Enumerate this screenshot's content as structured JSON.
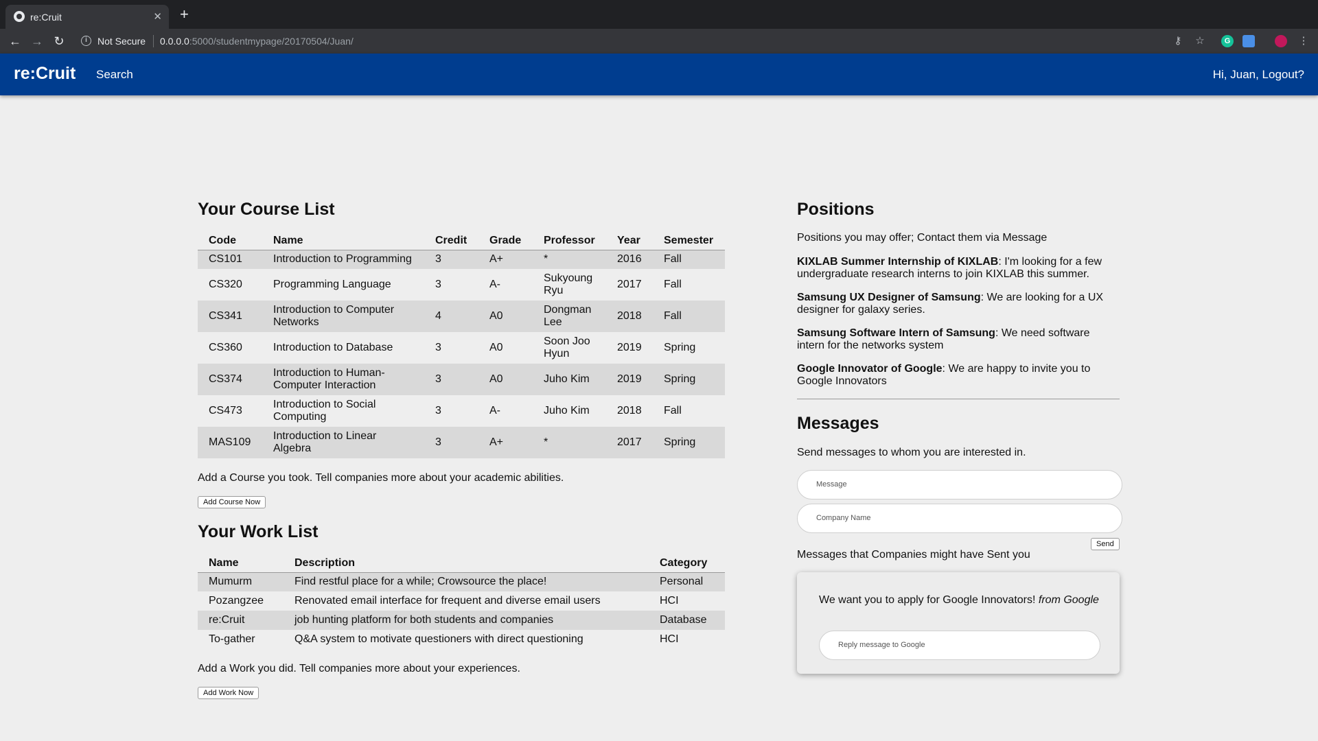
{
  "browser": {
    "tab_title": "re:Cruit",
    "new_tab": "+",
    "security_label": "Not Secure",
    "url_host": "0.0.0.0",
    "url_path": ":5000/studentmypage/20170504/Juan/"
  },
  "nav": {
    "brand": "re:Cruit",
    "search": "Search",
    "logout": "Hi, Juan, Logout?"
  },
  "courses": {
    "title": "Your Course List",
    "headers": [
      "Code",
      "Name",
      "Credit",
      "Grade",
      "Professor",
      "Year",
      "Semester"
    ],
    "rows": [
      [
        "CS101",
        "Introduction to Programming",
        "3",
        "A+",
        "*",
        "2016",
        "Fall"
      ],
      [
        "CS320",
        "Programming Language",
        "3",
        "A-",
        "Sukyoung Ryu",
        "2017",
        "Fall"
      ],
      [
        "CS341",
        "Introduction to Computer Networks",
        "4",
        "A0",
        "Dongman Lee",
        "2018",
        "Fall"
      ],
      [
        "CS360",
        "Introduction to Database",
        "3",
        "A0",
        "Soon Joo Hyun",
        "2019",
        "Spring"
      ],
      [
        "CS374",
        "Introduction to Human-Computer Interaction",
        "3",
        "A0",
        "Juho Kim",
        "2019",
        "Spring"
      ],
      [
        "CS473",
        "Introduction to Social Computing",
        "3",
        "A-",
        "Juho Kim",
        "2018",
        "Fall"
      ],
      [
        "MAS109",
        "Introduction to Linear Algebra",
        "3",
        "A+",
        "*",
        "2017",
        "Spring"
      ]
    ],
    "add_text": "Add a Course you took. Tell companies more about your academic abilities.",
    "add_button": "Add Course Now"
  },
  "works": {
    "title": "Your Work List",
    "headers": [
      "Name",
      "Description",
      "Category"
    ],
    "rows": [
      [
        "Mumurm",
        "Find restful place for a while; Crowsource the place!",
        "Personal"
      ],
      [
        "Pozangzee",
        "Renovated email interface for frequent and diverse email users",
        "HCI"
      ],
      [
        "re:Cruit",
        "job hunting platform for both students and companies",
        "Database"
      ],
      [
        "To-gather",
        "Q&A system to motivate questioners with direct questioning",
        "HCI"
      ]
    ],
    "add_text": "Add a Work you did. Tell companies more about your experiences.",
    "add_button": "Add Work Now"
  },
  "positions": {
    "title": "Positions",
    "intro": "Positions you may offer; Contact them via Message",
    "items": [
      {
        "name": "KIXLAB Summer Internship of KIXLAB",
        "desc": ": I'm looking for a few undergraduate research interns to join KIXLAB this summer."
      },
      {
        "name": "Samsung UX Designer of Samsung",
        "desc": ": We are looking for a UX designer for galaxy series."
      },
      {
        "name": "Samsung Software Intern of Samsung",
        "desc": ": We need software intern for the networks system"
      },
      {
        "name": "Google Innovator of Google",
        "desc": ": We are happy to invite you to Google Innovators"
      }
    ]
  },
  "messages": {
    "title": "Messages",
    "intro": "Send messages to whom you are interested in.",
    "message_placeholder": "Message",
    "company_placeholder": "Company Name",
    "send_button": "Send",
    "received_label": "Messages that Companies might have Sent you",
    "received": [
      {
        "text": "We want you to apply for Google Innovators!",
        "from": "from Google",
        "reply_placeholder": "Reply message to Google"
      }
    ]
  }
}
